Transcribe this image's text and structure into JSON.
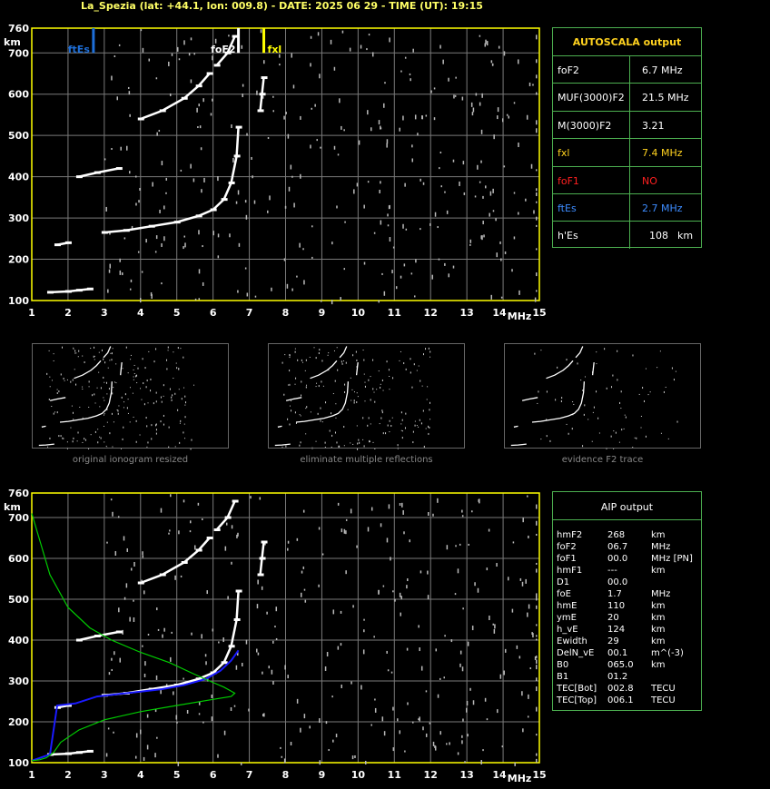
{
  "title": "La_Spezia (lat: +44.1, lon: 009.8) - DATE: 2025 06 29 - TIME (UT): 19:15",
  "axes": {
    "x_ticks": [
      "1",
      "2",
      "3",
      "4",
      "5",
      "6",
      "7",
      "8",
      "9",
      "10",
      "11",
      "12",
      "13",
      "14",
      "15"
    ],
    "x_unit": "MHz",
    "y_ticks": [
      "100",
      "200",
      "300",
      "400",
      "500",
      "600",
      "700",
      "760"
    ],
    "y_unit": "km"
  },
  "markers": {
    "ftEs_label": "ftEs",
    "foF2_label": "foF2",
    "fxl_label": "fxl"
  },
  "colors": {
    "axis": "#ffff00",
    "grid": "#7a7a7a",
    "panel_border": "#4caf50",
    "ftEs": "#1e6fd9",
    "fxl": "#ffff00",
    "profile_blue": "#1a1aff",
    "profile_green": "#00cc00"
  },
  "autoscala": {
    "header": "AUTOSCALA output",
    "rows": [
      {
        "label": "foF2",
        "value": "6.7 MHz",
        "color": "#ffffff"
      },
      {
        "label": "MUF(3000)F2",
        "value": "21.5 MHz",
        "color": "#ffffff"
      },
      {
        "label": "M(3000)F2",
        "value": "3.21",
        "color": "#ffffff"
      },
      {
        "label": "fxl",
        "value": "7.4 MHz",
        "color": "#ffd21f"
      },
      {
        "label": "foF1",
        "value": "NO",
        "color": "#ff2020"
      },
      {
        "label": "ftEs",
        "value": "2.7 MHz",
        "color": "#3d8cff"
      },
      {
        "label": "h'Es",
        "value": "108",
        "unit": "km",
        "color": "#ffffff"
      }
    ]
  },
  "thumbnails": {
    "captions": [
      "original ionogram resized",
      "eliminate multiple reflections",
      "evidence F2 trace"
    ]
  },
  "aip": {
    "header": "AIP output",
    "rows": [
      {
        "label": "hmF2",
        "value": "268",
        "unit": "km"
      },
      {
        "label": "foF2",
        "value": "06.7",
        "unit": "MHz"
      },
      {
        "label": "foF1",
        "value": "00.0",
        "unit": "MHz   [PN]"
      },
      {
        "label": "hmF1",
        "value": "---",
        "unit": "km"
      },
      {
        "label": "D1",
        "value": "00.0",
        "unit": ""
      },
      {
        "label": "foE",
        "value": "1.7",
        "unit": "MHz"
      },
      {
        "label": "hmE",
        "value": "110",
        "unit": "km"
      },
      {
        "label": "ymE",
        "value": "20",
        "unit": "km"
      },
      {
        "label": "h_vE",
        "value": "124",
        "unit": "km"
      },
      {
        "label": "Ewidth",
        "value": "29",
        "unit": "km"
      },
      {
        "label": "DelN_vE",
        "value": "00.1",
        "unit": "m^(-3)"
      },
      {
        "label": "B0",
        "value": "065.0",
        "unit": "km"
      },
      {
        "label": "B1",
        "value": "01.2",
        "unit": ""
      },
      {
        "label": "TEC[Bot]",
        "value": "002.8",
        "unit": "TECU"
      },
      {
        "label": "TEC[Top]",
        "value": "006.1",
        "unit": "TECU"
      }
    ]
  },
  "chart_data": [
    {
      "type": "scatter",
      "title": "",
      "xlabel": "MHz",
      "ylabel": "km",
      "xlim": [
        1,
        15
      ],
      "ylim": [
        100,
        760
      ],
      "grid": true,
      "markers": {
        "ftEs": 2.7,
        "foF2": 6.7,
        "fxl": 7.4
      },
      "series": [
        {
          "values": [
            [
              1.5,
              120
            ],
            [
              2.0,
              122
            ],
            [
              2.3,
              125
            ],
            [
              2.6,
              128
            ]
          ]
        },
        {
          "values": [
            [
              1.7,
              235
            ],
            [
              2.0,
              240
            ]
          ]
        },
        {
          "values": [
            [
              3.0,
              265
            ],
            [
              3.6,
              270
            ],
            [
              4.3,
              280
            ],
            [
              5.0,
              290
            ],
            [
              5.6,
              305
            ],
            [
              6.0,
              320
            ],
            [
              6.3,
              345
            ],
            [
              6.5,
              385
            ],
            [
              6.65,
              450
            ],
            [
              6.7,
              520
            ]
          ]
        },
        {
          "values": [
            [
              2.3,
              400
            ],
            [
              2.8,
              410
            ],
            [
              3.4,
              420
            ]
          ]
        },
        {
          "values": [
            [
              4.0,
              540
            ],
            [
              4.6,
              560
            ],
            [
              5.2,
              590
            ],
            [
              5.6,
              620
            ],
            [
              5.9,
              650
            ]
          ]
        },
        {
          "values": [
            [
              6.1,
              670
            ],
            [
              6.4,
              700
            ],
            [
              6.6,
              740
            ]
          ]
        },
        {
          "values": [
            [
              7.3,
              560
            ],
            [
              7.35,
              600
            ],
            [
              7.4,
              640
            ]
          ]
        }
      ]
    },
    {
      "type": "line",
      "title": "",
      "xlabel": "MHz",
      "ylabel": "km",
      "xlim": [
        1,
        15
      ],
      "ylim": [
        100,
        760
      ],
      "grid": true,
      "series": [
        {
          "values": [
            [
              1.5,
              120
            ],
            [
              2.0,
              122
            ],
            [
              2.3,
              125
            ],
            [
              2.6,
              128
            ]
          ]
        },
        {
          "values": [
            [
              1.7,
              235
            ],
            [
              2.0,
              240
            ]
          ]
        },
        {
          "values": [
            [
              3.0,
              265
            ],
            [
              3.6,
              270
            ],
            [
              4.3,
              280
            ],
            [
              5.0,
              290
            ],
            [
              5.6,
              305
            ],
            [
              6.0,
              320
            ],
            [
              6.3,
              345
            ],
            [
              6.5,
              385
            ],
            [
              6.65,
              450
            ],
            [
              6.7,
              520
            ]
          ]
        },
        {
          "values": [
            [
              2.3,
              400
            ],
            [
              2.8,
              410
            ],
            [
              3.4,
              420
            ]
          ]
        },
        {
          "values": [
            [
              4.0,
              540
            ],
            [
              4.6,
              560
            ],
            [
              5.2,
              590
            ],
            [
              5.6,
              620
            ],
            [
              5.9,
              650
            ]
          ]
        },
        {
          "values": [
            [
              6.1,
              670
            ],
            [
              6.4,
              700
            ],
            [
              6.6,
              740
            ]
          ]
        },
        {
          "values": [
            [
              7.3,
              560
            ],
            [
              7.35,
              600
            ],
            [
              7.4,
              640
            ]
          ]
        },
        {
          "values": [
            [
              1.0,
              105
            ],
            [
              1.5,
              120
            ],
            [
              1.7,
              240
            ],
            [
              2.2,
              245
            ],
            [
              2.8,
              262
            ],
            [
              3.4,
              268
            ],
            [
              4.0,
              274
            ],
            [
              4.6,
              280
            ],
            [
              5.2,
              290
            ],
            [
              5.8,
              305
            ],
            [
              6.2,
              325
            ],
            [
              6.5,
              350
            ],
            [
              6.7,
              375
            ]
          ]
        },
        {
          "values": [
            [
              1.0,
              710
            ],
            [
              1.2,
              650
            ],
            [
              1.5,
              560
            ],
            [
              2.0,
              480
            ],
            [
              2.6,
              430
            ],
            [
              3.2,
              400
            ],
            [
              4.0,
              370
            ],
            [
              4.8,
              345
            ],
            [
              5.4,
              320
            ],
            [
              5.9,
              300
            ],
            [
              6.3,
              285
            ],
            [
              6.6,
              270
            ],
            [
              6.5,
              262
            ],
            [
              6.0,
              255
            ],
            [
              5.0,
              240
            ],
            [
              4.0,
              225
            ],
            [
              3.0,
              205
            ],
            [
              2.3,
              180
            ],
            [
              1.8,
              150
            ],
            [
              1.6,
              125
            ],
            [
              1.4,
              112
            ],
            [
              1.2,
              107
            ],
            [
              1.0,
              105
            ]
          ]
        }
      ]
    }
  ]
}
